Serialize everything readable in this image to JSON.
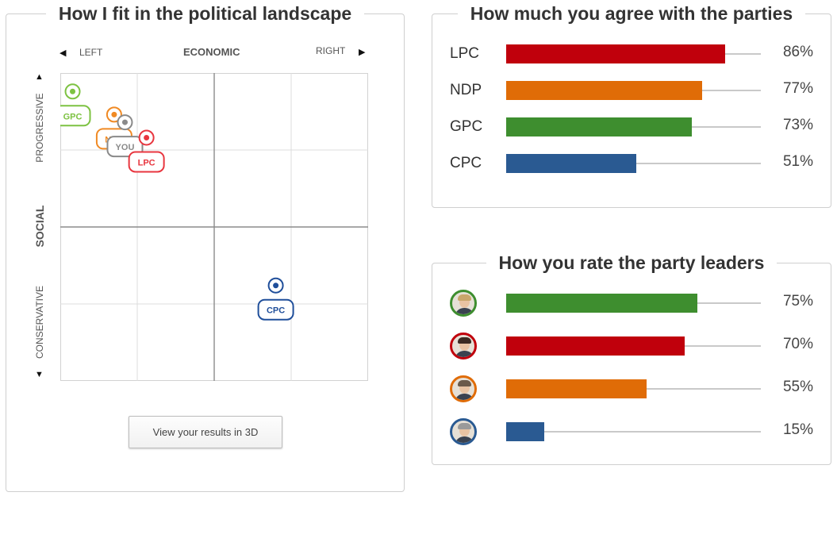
{
  "landscape": {
    "title": "How I fit in the political landscape",
    "axis_left": "LEFT",
    "axis_economic": "ECONOMIC",
    "axis_right": "RIGHT",
    "axis_progressive": "PROGRESSIVE",
    "axis_social": "SOCIAL",
    "axis_conservative": "CONSERVATIVE",
    "view_3d_button": "View your results in 3D",
    "markers": [
      {
        "label": "GPC",
        "color": "#7dc242",
        "x": -0.92,
        "y": 0.88
      },
      {
        "label": "NDP",
        "color": "#f08a24",
        "x": -0.65,
        "y": 0.73
      },
      {
        "label": "YOU",
        "color": "#8a8a8a",
        "x": -0.58,
        "y": 0.68
      },
      {
        "label": "LPC",
        "color": "#e8363f",
        "x": -0.44,
        "y": 0.58
      },
      {
        "label": "CPC",
        "color": "#1f4e9a",
        "x": 0.4,
        "y": -0.38
      }
    ]
  },
  "parties": {
    "title": "How much you agree with the parties",
    "rows": [
      {
        "label": "LPC",
        "value": 86,
        "display": "86%",
        "color": "#c0000c"
      },
      {
        "label": "NDP",
        "value": 77,
        "display": "77%",
        "color": "#e06c07"
      },
      {
        "label": "GPC",
        "value": 73,
        "display": "73%",
        "color": "#3e8e2f"
      },
      {
        "label": "CPC",
        "value": 51,
        "display": "51%",
        "color": "#2a5a92"
      }
    ]
  },
  "leaders": {
    "title": "How you rate the party leaders",
    "rows": [
      {
        "avatar": "gpc-leader-avatar",
        "ring": "#3e8e2f",
        "hair": "#c9a66b",
        "value": 75,
        "display": "75%",
        "color": "#3e8e2f"
      },
      {
        "avatar": "lpc-leader-avatar",
        "ring": "#c0000c",
        "hair": "#3b2a22",
        "value": 70,
        "display": "70%",
        "color": "#c0000c"
      },
      {
        "avatar": "ndp-leader-avatar",
        "ring": "#e06c07",
        "hair": "#6b5a4a",
        "value": 55,
        "display": "55%",
        "color": "#e06c07"
      },
      {
        "avatar": "cpc-leader-avatar",
        "ring": "#2a5a92",
        "hair": "#9a9a9a",
        "value": 15,
        "display": "15%",
        "color": "#2a5a92"
      }
    ]
  }
}
